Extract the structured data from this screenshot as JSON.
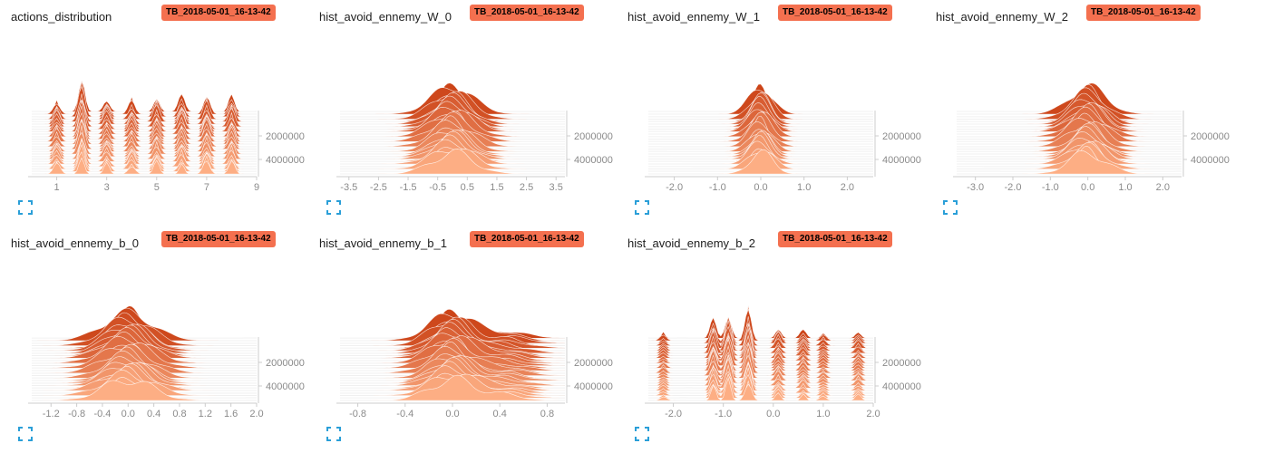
{
  "cards": [
    {
      "title": "actions_distribution",
      "run": "TB_2018-05-01_16-13-42",
      "ref": 0
    },
    {
      "title": "hist_avoid_ennemy_W_0",
      "run": "TB_2018-05-01_16-13-42",
      "ref": 1
    },
    {
      "title": "hist_avoid_ennemy_W_1",
      "run": "TB_2018-05-01_16-13-42",
      "ref": 2
    },
    {
      "title": "hist_avoid_ennemy_W_2",
      "run": "TB_2018-05-01_16-13-42",
      "ref": 3
    },
    {
      "title": "hist_avoid_ennemy_b_0",
      "run": "TB_2018-05-01_16-13-42",
      "ref": 4
    },
    {
      "title": "hist_avoid_ennemy_b_1",
      "run": "TB_2018-05-01_16-13-42",
      "ref": 5
    },
    {
      "title": "hist_avoid_ennemy_b_2",
      "run": "TB_2018-05-01_16-13-42",
      "ref": 6
    }
  ],
  "colors": {
    "dark": "#cc4418",
    "light": "#fdae84",
    "badge": "#f4704f",
    "icon": "#2a9fd8"
  },
  "icons": {
    "expand": "fullscreen-expand-icon"
  },
  "chart_data": [
    {
      "type": "area",
      "mode": "offset",
      "histogram": "actions_distribution",
      "xlim": [
        0,
        9
      ],
      "x_ticks": [
        "1",
        "3",
        "5",
        "7",
        "9"
      ],
      "x_tick_values": [
        1,
        3,
        5,
        7,
        9
      ],
      "y_ticks": [
        "2000000",
        "4000000"
      ],
      "y_tick_values": [
        2000000,
        4000000
      ],
      "ylim": [
        0,
        5000000
      ],
      "peaks": [
        {
          "x": 1,
          "height": 0.45
        },
        {
          "x": 2,
          "height": 1.0
        },
        {
          "x": 3,
          "height": 0.45
        },
        {
          "x": 4,
          "height": 0.45
        },
        {
          "x": 5,
          "height": 0.55
        },
        {
          "x": 6,
          "height": 0.55
        },
        {
          "x": 7,
          "height": 0.6
        },
        {
          "x": 8,
          "height": 0.6
        }
      ],
      "spread": 0.25
    },
    {
      "type": "area",
      "mode": "offset",
      "histogram": "hist_avoid_ennemy_W_0",
      "xlim": [
        -3.8,
        3.8
      ],
      "x_ticks": [
        "-3.5",
        "-2.5",
        "-1.5",
        "-0.5",
        "0.5",
        "1.5",
        "2.5",
        "3.5"
      ],
      "x_tick_values": [
        -3.5,
        -2.5,
        -1.5,
        -0.5,
        0.5,
        1.5,
        2.5,
        3.5
      ],
      "y_ticks": [
        "2000000",
        "4000000"
      ],
      "y_tick_values": [
        2000000,
        4000000
      ],
      "ylim": [
        0,
        5000000
      ],
      "peaks": [
        {
          "x": 0,
          "height": 1.0
        }
      ],
      "spread": 1.3
    },
    {
      "type": "area",
      "mode": "offset",
      "histogram": "hist_avoid_ennemy_W_1",
      "xlim": [
        -2.6,
        2.6
      ],
      "x_ticks": [
        "-2.0",
        "-1.0",
        "0.0",
        "1.0",
        "2.0"
      ],
      "x_tick_values": [
        -2,
        -1,
        0,
        1,
        2
      ],
      "y_ticks": [
        "2000000",
        "4000000"
      ],
      "y_tick_values": [
        2000000,
        4000000
      ],
      "ylim": [
        0,
        5000000
      ],
      "peaks": [
        {
          "x": 0,
          "height": 1.0
        }
      ],
      "spread": 0.5
    },
    {
      "type": "area",
      "mode": "offset",
      "histogram": "hist_avoid_ennemy_W_2",
      "xlim": [
        -3.5,
        2.5
      ],
      "x_ticks": [
        "-3.0",
        "-2.0",
        "-1.0",
        "0.0",
        "1.0",
        "2.0"
      ],
      "x_tick_values": [
        -3,
        -2,
        -1,
        0,
        1,
        2
      ],
      "y_ticks": [
        "2000000",
        "4000000"
      ],
      "y_tick_values": [
        2000000,
        4000000
      ],
      "ylim": [
        0,
        5000000
      ],
      "peaks": [
        {
          "x": 0,
          "height": 1.0
        }
      ],
      "spread": 0.9
    },
    {
      "type": "area",
      "mode": "offset",
      "histogram": "hist_avoid_ennemy_b_0",
      "xlim": [
        -1.5,
        2.0
      ],
      "x_ticks": [
        "-1.2",
        "-0.8",
        "-0.4",
        "0.0",
        "0.4",
        "0.8",
        "1.2",
        "1.6",
        "2.0"
      ],
      "x_tick_values": [
        -1.2,
        -0.8,
        -0.4,
        0,
        0.4,
        0.8,
        1.2,
        1.6,
        2.0
      ],
      "y_ticks": [
        "2000000",
        "4000000"
      ],
      "y_tick_values": [
        2000000,
        4000000
      ],
      "ylim": [
        0,
        5000000
      ],
      "peaks": [
        {
          "x": 0,
          "height": 1.0
        }
      ],
      "spread": 0.7
    },
    {
      "type": "area",
      "mode": "offset",
      "histogram": "hist_avoid_ennemy_b_1",
      "xlim": [
        -0.95,
        0.95
      ],
      "x_ticks": [
        "-0.8",
        "-0.4",
        "0.0",
        "0.4",
        "0.8"
      ],
      "x_tick_values": [
        -0.8,
        -0.4,
        0,
        0.4,
        0.8
      ],
      "y_ticks": [
        "2000000",
        "4000000"
      ],
      "y_tick_values": [
        2000000,
        4000000
      ],
      "ylim": [
        0,
        5000000
      ],
      "peaks": [
        {
          "x": 0,
          "height": 1.0
        },
        {
          "x": 0.45,
          "height": 0.25
        }
      ],
      "spread": 0.35
    },
    {
      "type": "area",
      "mode": "offset",
      "histogram": "hist_avoid_ennemy_b_2",
      "xlim": [
        -2.5,
        2.0
      ],
      "x_ticks": [
        "-2.0",
        "-1.0",
        "0.0",
        "1.0",
        "2.0"
      ],
      "x_tick_values": [
        -2,
        -1,
        0,
        1,
        2
      ],
      "y_ticks": [
        "2000000",
        "4000000"
      ],
      "y_tick_values": [
        2000000,
        4000000
      ],
      "ylim": [
        0,
        5000000
      ],
      "peaks": [
        {
          "x": -2.2,
          "height": 0.2
        },
        {
          "x": -1.2,
          "height": 0.7
        },
        {
          "x": -0.9,
          "height": 0.9
        },
        {
          "x": -0.5,
          "height": 1.0
        },
        {
          "x": 0.1,
          "height": 0.35
        },
        {
          "x": 0.6,
          "height": 0.3
        },
        {
          "x": 1.0,
          "height": 0.2
        },
        {
          "x": 1.7,
          "height": 0.25
        }
      ],
      "spread": 0.12
    }
  ]
}
